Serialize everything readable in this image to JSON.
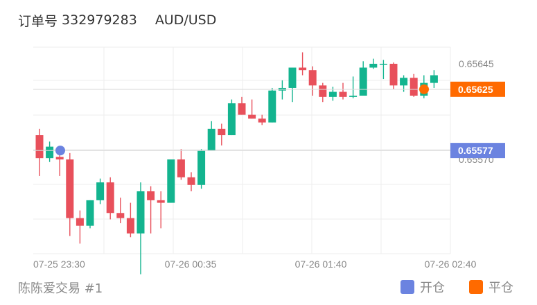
{
  "header": {
    "order_label": "订单号",
    "order_id": "332979283",
    "symbol": "AUD/USD"
  },
  "footer": {
    "account": "陈陈爱交易 #1"
  },
  "legend": {
    "open_label": "开仓",
    "close_label": "平仓",
    "open_color": "#6b83e0",
    "close_color": "#ff6a00"
  },
  "colors": {
    "up": "#13b48f",
    "down": "#e8505b",
    "grid": "#eeeeee"
  },
  "chart_data": {
    "type": "candlestick",
    "x_tick_labels": [
      "07-25 23:30",
      "07-26 00:35",
      "07-26 01:40",
      "07-26 02:40"
    ],
    "y_tick_labels": [
      "0.65645",
      "0.65570"
    ],
    "open_price_label": "0.65577",
    "close_price_label": "0.65625",
    "open_price": 0.65577,
    "close_price": 0.65625,
    "candles": [
      [
        0.65589,
        0.65594,
        0.65557,
        0.65571
      ],
      [
        0.65571,
        0.65584,
        0.65568,
        0.6558
      ],
      [
        0.65572,
        0.65575,
        0.65557,
        0.6557
      ],
      [
        0.6557,
        0.65575,
        0.6551,
        0.65524
      ],
      [
        0.65524,
        0.6553,
        0.65504,
        0.65518
      ],
      [
        0.65518,
        0.65538,
        0.65516,
        0.65538
      ],
      [
        0.65538,
        0.65555,
        0.65535,
        0.65552
      ],
      [
        0.65552,
        0.65556,
        0.65523,
        0.65528
      ],
      [
        0.65528,
        0.6554,
        0.6552,
        0.65524
      ],
      [
        0.65524,
        0.65536,
        0.65509,
        0.65512
      ],
      [
        0.65512,
        0.65552,
        0.6548,
        0.65545
      ],
      [
        0.65545,
        0.65549,
        0.65512,
        0.65538
      ],
      [
        0.65538,
        0.65545,
        0.65516,
        0.65536
      ],
      [
        0.65536,
        0.6557,
        0.65536,
        0.6557
      ],
      [
        0.6557,
        0.65578,
        0.65554,
        0.65556
      ],
      [
        0.65556,
        0.6556,
        0.65545,
        0.6555
      ],
      [
        0.6555,
        0.65578,
        0.65547,
        0.65577
      ],
      [
        0.65577,
        0.656,
        0.65577,
        0.65594
      ],
      [
        0.65594,
        0.65598,
        0.65581,
        0.65589
      ],
      [
        0.65589,
        0.65617,
        0.65589,
        0.65614
      ],
      [
        0.65614,
        0.65619,
        0.65605,
        0.65605
      ],
      [
        0.65605,
        0.65617,
        0.65602,
        0.65602
      ],
      [
        0.65602,
        0.65605,
        0.65597,
        0.65599
      ],
      [
        0.65599,
        0.65626,
        0.65599,
        0.65624
      ],
      [
        0.65624,
        0.65632,
        0.65617,
        0.65626
      ],
      [
        0.65626,
        0.65642,
        0.65615,
        0.65642
      ],
      [
        0.65642,
        0.65654,
        0.65636,
        0.6564
      ],
      [
        0.6564,
        0.65643,
        0.6562,
        0.65628
      ],
      [
        0.65628,
        0.6563,
        0.65615,
        0.65619
      ],
      [
        0.65619,
        0.65627,
        0.65616,
        0.65623
      ],
      [
        0.65623,
        0.6563,
        0.65617,
        0.65619
      ],
      [
        0.65619,
        0.65635,
        0.65618,
        0.6562
      ],
      [
        0.6562,
        0.65647,
        0.6562,
        0.65642
      ],
      [
        0.65642,
        0.65649,
        0.65641,
        0.65645
      ],
      [
        0.65645,
        0.65648,
        0.65633,
        0.65645
      ],
      [
        0.65645,
        0.65646,
        0.65625,
        0.65628
      ],
      [
        0.65628,
        0.65636,
        0.65623,
        0.65634
      ],
      [
        0.65634,
        0.65637,
        0.65619,
        0.6562
      ],
      [
        0.6562,
        0.65636,
        0.65618,
        0.6563
      ],
      [
        0.6563,
        0.6564,
        0.65626,
        0.65636
      ]
    ]
  }
}
